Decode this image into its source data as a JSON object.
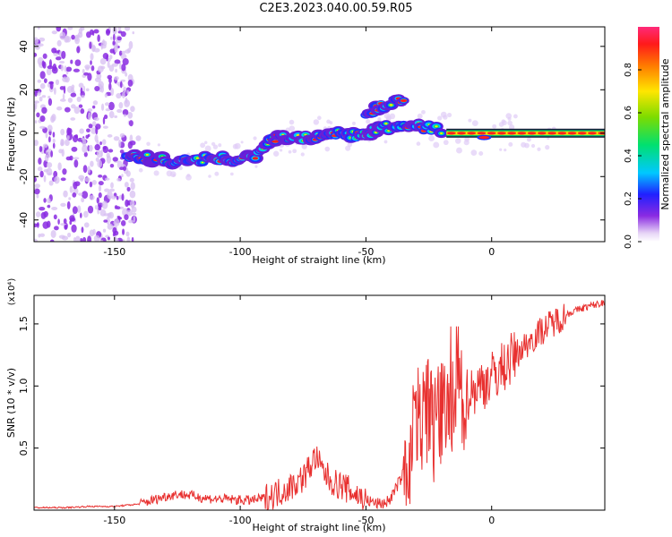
{
  "title": "C2E3.2023.040.00.59.R05",
  "colors": {
    "snr_line": "#e8302f",
    "ridge": "#ff1f1f"
  },
  "chart_data": [
    {
      "type": "heatmap",
      "title": "C2E3.2023.040.00.59.R05",
      "xlabel": "Height of straight line (km)",
      "ylabel": "Frequency (Hz)",
      "xlim": [
        -182,
        45
      ],
      "ylim": [
        -50,
        49
      ],
      "x_ticks": [
        -150,
        -100,
        -50,
        0
      ],
      "y_ticks": [
        40,
        20,
        0,
        -20,
        -40
      ],
      "x_tick_labels": [
        "-150",
        "-100",
        "-50",
        "0"
      ],
      "y_tick_labels": [
        "40",
        "20",
        "0",
        "-20",
        "-40"
      ],
      "colorbar": {
        "label": "Normalized spectral amplitude",
        "range": [
          0,
          1
        ],
        "ticks": [
          0.0,
          0.2,
          0.4,
          0.6,
          0.8
        ],
        "tick_labels": [
          "0.0",
          "0.2",
          "0.4",
          "0.6",
          "0.8"
        ]
      },
      "ridge_frequency": [
        {
          "x": -145,
          "y": -11
        },
        {
          "x": -135,
          "y": -12
        },
        {
          "x": -125,
          "y": -13
        },
        {
          "x": -115,
          "y": -12
        },
        {
          "x": -105,
          "y": -12
        },
        {
          "x": -95,
          "y": -11
        },
        {
          "x": -90,
          "y": -6
        },
        {
          "x": -85,
          "y": -2
        },
        {
          "x": -80,
          "y": -1
        },
        {
          "x": -75,
          "y": -2
        },
        {
          "x": -70,
          "y": -1
        },
        {
          "x": -65,
          "y": 0
        },
        {
          "x": -60,
          "y": 0
        },
        {
          "x": -55,
          "y": -1
        },
        {
          "x": -50,
          "y": 0
        },
        {
          "x": -45,
          "y": 2
        },
        {
          "x": -40,
          "y": 3
        },
        {
          "x": -35,
          "y": 4
        },
        {
          "x": -30,
          "y": 3
        },
        {
          "x": -25,
          "y": 2
        },
        {
          "x": -20,
          "y": 1
        },
        {
          "x": -15,
          "y": 0
        },
        {
          "x": -10,
          "y": 0
        },
        {
          "x": -5,
          "y": -2
        },
        {
          "x": 0,
          "y": 0
        },
        {
          "x": 10,
          "y": 0
        },
        {
          "x": 20,
          "y": 0
        },
        {
          "x": 30,
          "y": 0
        },
        {
          "x": 40,
          "y": 0
        },
        {
          "x": 45,
          "y": 0
        }
      ],
      "upper_branch": [
        {
          "x": -50,
          "y": 8
        },
        {
          "x": -45,
          "y": 12
        },
        {
          "x": -40,
          "y": 14
        },
        {
          "x": -35,
          "y": 15
        }
      ]
    },
    {
      "type": "line",
      "xlabel": "Height of straight line (km)",
      "ylabel": "SNR (10 * v/v)",
      "y_multiplier": "(x10⁴)",
      "xlim": [
        -182,
        45
      ],
      "ylim": [
        0,
        1.73
      ],
      "x_ticks": [
        -150,
        -100,
        -50,
        0
      ],
      "y_ticks": [
        0.5,
        1.0,
        1.5
      ],
      "x_tick_labels": [
        "-150",
        "-100",
        "-50",
        "0"
      ],
      "y_tick_labels": [
        "0.5",
        "1.0",
        "1.5"
      ],
      "series": [
        {
          "x": [
            -182,
            -170,
            -160,
            -150,
            -140,
            -135,
            -130,
            -125,
            -120,
            -115,
            -110,
            -105,
            -100,
            -95,
            -90,
            -85,
            -80,
            -75,
            -72,
            -70,
            -68,
            -65,
            -62,
            -60,
            -55,
            -50,
            -45,
            -42,
            -40,
            -38,
            -35,
            -32,
            -30,
            -28,
            -25,
            -22,
            -20,
            -18,
            -15,
            -12,
            -10,
            -5,
            0,
            5,
            10,
            15,
            20,
            25,
            30,
            35,
            40,
            45
          ],
          "y": [
            0.02,
            0.02,
            0.03,
            0.03,
            0.05,
            0.08,
            0.11,
            0.13,
            0.12,
            0.1,
            0.09,
            0.09,
            0.08,
            0.08,
            0.1,
            0.14,
            0.19,
            0.26,
            0.36,
            0.43,
            0.34,
            0.26,
            0.21,
            0.2,
            0.14,
            0.08,
            0.05,
            0.06,
            0.1,
            0.18,
            0.3,
            0.55,
            0.85,
            0.7,
            0.8,
            0.72,
            0.78,
            0.74,
            0.78,
            0.85,
            0.93,
            1.0,
            1.07,
            1.16,
            1.26,
            1.36,
            1.45,
            1.52,
            1.58,
            1.62,
            1.65,
            1.67
          ]
        }
      ]
    }
  ]
}
